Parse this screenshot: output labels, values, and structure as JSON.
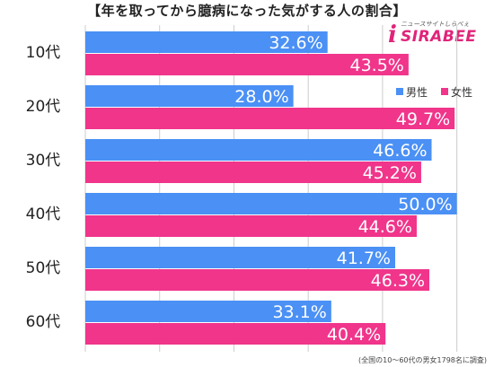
{
  "header": {
    "title": "【年を取ってから臆病になった気がする人の割合】"
  },
  "logo": {
    "mark": "i",
    "word": "SIRABEE",
    "tagline": "ニュースサイトしらべぇ"
  },
  "footnote": "(全国の10〜60代の男女1798名に調査)",
  "colors": {
    "male": "#4a90f5",
    "female": "#f0358b",
    "grid": "#cccccc"
  },
  "chart_data": {
    "type": "bar",
    "orientation": "horizontal",
    "categories": [
      "10代",
      "20代",
      "30代",
      "40代",
      "50代",
      "60代"
    ],
    "series": [
      {
        "name": "男性",
        "values": [
          32.6,
          28.0,
          46.6,
          50.0,
          41.7,
          33.1
        ]
      },
      {
        "name": "女性",
        "values": [
          43.5,
          49.7,
          45.2,
          44.6,
          46.3,
          40.4
        ]
      }
    ],
    "value_labels": {
      "男性": [
        "32.6%",
        "28.0%",
        "46.6%",
        "50.0%",
        "41.7%",
        "33.1%"
      ],
      "女性": [
        "43.5%",
        "49.7%",
        "45.2%",
        "44.6%",
        "46.3%",
        "40.4%"
      ]
    },
    "xlim": [
      0,
      55
    ],
    "grid": true,
    "legend": "top-right"
  }
}
